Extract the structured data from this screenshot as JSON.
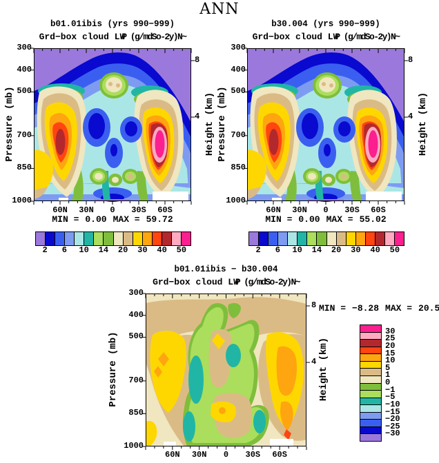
{
  "title": "ANN",
  "axes": {
    "pressure_label": "Pressure (mb)",
    "height_label": "Height (km)",
    "pressure_ticks": [
      "300",
      "400",
      "500",
      "700",
      "850",
      "1000"
    ],
    "pressure_values": [
      300,
      400,
      500,
      700,
      850,
      1000
    ],
    "height_ticks": [
      "8",
      "4"
    ],
    "lat_ticks": [
      "60N",
      "30N",
      "0",
      "30S",
      "60S"
    ]
  },
  "panels": {
    "left": {
      "title": "b01.01ibis (yrs 990−999)",
      "subtitle_lead": "Grd−box cloud LW",
      "subtitle_tail": "P (g/mdSo-2y)N~",
      "min_label": "MIN =",
      "min_value": "0.00",
      "max_label": "MAX =",
      "max_value": "59.72"
    },
    "right": {
      "title": "b30.004 (yrs 990−999)",
      "subtitle_lead": "Grd−box cloud LW",
      "subtitle_tail": "P (g/mdSo-2y)N~",
      "min_label": "MIN =",
      "min_value": "0.00",
      "max_label": "MAX =",
      "max_value": "55.02"
    },
    "diff": {
      "title": "b01.01ibis − b30.004",
      "subtitle_lead": "Grd−box cloud LW",
      "subtitle_tail": "P (g/mdSo-2y)N~",
      "min_label": "MIN =",
      "min_value": "−8.28",
      "max_label": "MAX =",
      "max_value": "20.50"
    }
  },
  "colorbar": {
    "labels": [
      "2",
      "6",
      "10",
      "14",
      "20",
      "30",
      "40",
      "50"
    ],
    "colors": [
      "#9B79DC",
      "#0909CF",
      "#3A5FF0",
      "#7E9BF2",
      "#ABE6E6",
      "#21B5A5",
      "#AADE5C",
      "#7FBE3C",
      "#F0E6C0",
      "#DBBB85",
      "#FFD700",
      "#FFA510",
      "#FF4510",
      "#B3282D",
      "#FFAAC0",
      "#FB1F8F"
    ]
  },
  "diff_colorbar": {
    "labels": [
      "30",
      "25",
      "20",
      "15",
      "10",
      "5",
      "1",
      "0",
      "−1",
      "−5",
      "−10",
      "−15",
      "−20",
      "−25",
      "−30"
    ],
    "colors": [
      "#FB1F8F",
      "#FFAAC0",
      "#B3282D",
      "#FF4510",
      "#FFA510",
      "#FFD700",
      "#DBBB85",
      "#F0E6C0",
      "#7FBE3C",
      "#AADE5C",
      "#21B5A5",
      "#ABE6E6",
      "#7E9BF2",
      "#3A5FF0",
      "#0909CF",
      "#9B79DC"
    ]
  },
  "chart_data": [
    {
      "type": "contour",
      "panel": "top-left",
      "title": "b01.01ibis (yrs 990−999)",
      "variable": "Grd−box cloud LWP",
      "units": "g/m2",
      "season": "ANN",
      "x_axis": {
        "ticks": [
          "60N",
          "30N",
          "0",
          "30S",
          "60S"
        ],
        "range": [
          "90N",
          "90S"
        ]
      },
      "y_axis": {
        "label": "Pressure (mb)",
        "ticks": [
          300,
          400,
          500,
          700,
          850,
          1000
        ],
        "range": [
          300,
          1000
        ]
      },
      "y2_axis": {
        "label": "Height (km)",
        "ticks": [
          8,
          4
        ]
      },
      "contour_level_labels": [
        2,
        6,
        10,
        14,
        20,
        30,
        40,
        50
      ],
      "min": 0.0,
      "max": 59.72,
      "notes": "Minimum (<2, purple) aloft above ~400 mb; dark-blue dome 350–500 mb; warm maximum near 60N at ~700 mb with dark-red core (>40); strongest maximum near 50S at ~700 mb with magenta core (>50); cream/green cell near equator at ~450 mb; dark-blue pockets ~700 mb at ±20°."
    },
    {
      "type": "contour",
      "panel": "top-right",
      "title": "b30.004 (yrs 990−999)",
      "variable": "Grd−box cloud LWP",
      "units": "g/m2",
      "season": "ANN",
      "x_axis": {
        "ticks": [
          "60N",
          "30N",
          "0",
          "30S",
          "60S"
        ],
        "range": [
          "90N",
          "90S"
        ]
      },
      "y_axis": {
        "label": "Pressure (mb)",
        "ticks": [
          300,
          400,
          500,
          700,
          850,
          1000
        ],
        "range": [
          300,
          1000
        ]
      },
      "y2_axis": {
        "label": "Height (km)",
        "ticks": [
          8,
          4
        ]
      },
      "contour_level_labels": [
        2,
        6,
        10,
        14,
        20,
        30,
        40,
        50
      ],
      "min": 0.0,
      "max": 55.02,
      "notes": "Same structure as top-left: mid-latitude maxima at ~700 mb (dark-red core near 60N, magenta/pink core near 50S), purple minimum aloft, equatorial cream/green cell at ~400–500 mb."
    },
    {
      "type": "contour",
      "panel": "bottom-difference",
      "title": "b01.01ibis − b30.004",
      "variable": "Grd−box cloud LWP difference",
      "units": "g/m2",
      "season": "ANN",
      "x_axis": {
        "ticks": [
          "60N",
          "30N",
          "0",
          "30S",
          "60S"
        ],
        "range": [
          "90N",
          "90S"
        ]
      },
      "y_axis": {
        "label": "Pressure (mb)",
        "ticks": [
          300,
          400,
          500,
          700,
          850,
          1000
        ],
        "range": [
          300,
          1000
        ]
      },
      "y2_axis": {
        "label": "Height (km)",
        "ticks": [
          8,
          4
        ]
      },
      "contour_level_labels": [
        30,
        25,
        20,
        15,
        10,
        5,
        1,
        0,
        -1,
        -5,
        -10,
        -15,
        -20,
        -25,
        -30
      ],
      "min": -8.28,
      "max": 20.5,
      "notes": "Field mostly +1..5 (tan) over cream (0..1); positive bands +5..15 (yellow/orange) on flanks near 55N and 50–70S; negative regions −1..−5 (green) through tropical mid-troposphere with −5..−10 (teal) pockets near 45N/equator/40S."
    }
  ]
}
